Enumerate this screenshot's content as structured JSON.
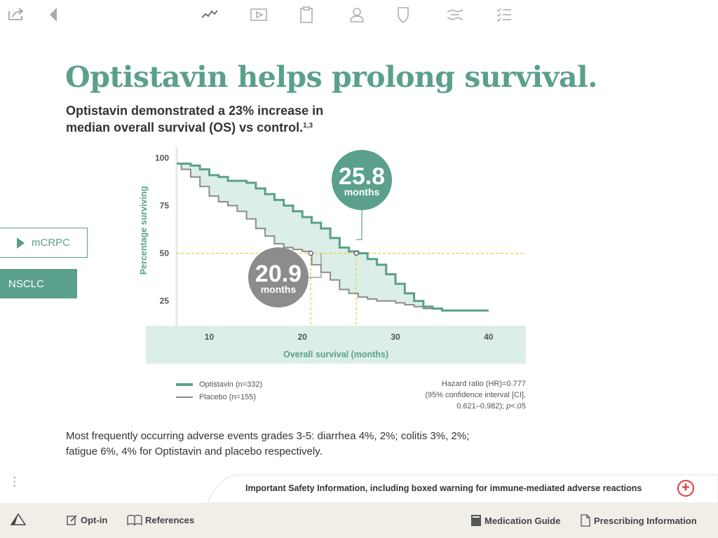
{
  "toolbar": {
    "icons": [
      "share-icon",
      "back-arrow-icon",
      "chart-line-icon",
      "video-icon",
      "clipboard-icon",
      "person-icon",
      "shield-icon",
      "handshake-icon",
      "checklist-icon"
    ]
  },
  "heading": {
    "title": "Optistavin helps prolong survival.",
    "subtitle_line1": "Optistavin demonstrated a 23% increase in",
    "subtitle_line2": "median overall survival (OS) vs control.",
    "subtitle_sup": "1,3"
  },
  "tabs": {
    "mcrpc": "mCRPC",
    "nsclc": "NSCLC"
  },
  "chart_data": {
    "type": "line",
    "title": "",
    "xlabel": "Overall survival (months)",
    "ylabel": "Percentage surviving",
    "xlim": [
      6.5,
      42.5
    ],
    "ylim": [
      12,
      102
    ],
    "x_ticks": [
      10,
      20,
      30,
      40
    ],
    "y_ticks": [
      25,
      50,
      75,
      100
    ],
    "reference_line_y": 50,
    "series": [
      {
        "name": "Optistavin (n=332)",
        "color": "#5aa08c",
        "x": [
          6.5,
          8,
          9,
          10,
          11,
          12,
          14,
          15,
          16,
          17,
          18,
          19,
          20,
          21,
          22,
          23,
          24,
          25,
          26,
          27,
          28,
          29,
          30,
          31,
          32,
          33,
          34,
          35,
          36,
          37,
          38,
          39,
          40
        ],
        "y": [
          97,
          96,
          94,
          91,
          90,
          88,
          87,
          84,
          81,
          78,
          75,
          72,
          69,
          66,
          63,
          58,
          53,
          51,
          50,
          47,
          44,
          39,
          34,
          29,
          25,
          22,
          21,
          20,
          20,
          20,
          20,
          20,
          20
        ]
      },
      {
        "name": "Placebo (n=155)",
        "color": "#8c8c8c",
        "x": [
          6.5,
          7,
          8,
          9,
          10,
          11,
          12,
          13,
          14,
          15,
          16,
          17,
          18,
          19,
          20,
          20.9,
          21,
          22,
          23,
          24,
          25,
          26,
          27,
          28,
          29,
          30,
          31,
          32,
          33,
          34,
          35,
          36,
          37,
          38,
          39,
          40
        ],
        "y": [
          97,
          94,
          90,
          85,
          80,
          77,
          75,
          72,
          68,
          63,
          59,
          55,
          53,
          52,
          51,
          50,
          44,
          40,
          36,
          31,
          29,
          27,
          26,
          25,
          25,
          24,
          23,
          22,
          21,
          21,
          20,
          20,
          20,
          20,
          20,
          20
        ]
      }
    ],
    "callouts": [
      {
        "value": "25.8",
        "unit": "months",
        "x": 25.8,
        "y": 50,
        "color": "#5aa08c"
      },
      {
        "value": "20.9",
        "unit": "months",
        "x": 20.9,
        "y": 50,
        "color": "#8c8c8c"
      }
    ],
    "legend_position": "bottom-left"
  },
  "hazard_note": {
    "line1": "Hazard ratio (HR)=0.777",
    "line2": "(95% confidence interval [CI],",
    "line3_pre": "0.621–0.982); ",
    "line3_p": "p",
    "line3_post": "<.05"
  },
  "adverse_events": {
    "line1": "Most frequently occurring adverse events grades 3-5: diarrhea 4%, 2%; colitis 3%, 2%;",
    "line2": "fatigue 6%, 4% for Optistavin and placebo respectively."
  },
  "isi": {
    "text": "Important Safety Information, including boxed warning for immune-mediated adverse reactions",
    "plus": "+"
  },
  "bottom_bar": {
    "opt_in": "Opt-in",
    "references": "References",
    "medication_guide": "Medication Guide",
    "prescribing_information": "Prescribing Information"
  },
  "colors": {
    "accent": "#5aa08c",
    "placebo": "#8c8c8c",
    "fill": "#dbeee8",
    "reference_line": "#f2c94c",
    "isi_plus": "#e53a3a"
  }
}
